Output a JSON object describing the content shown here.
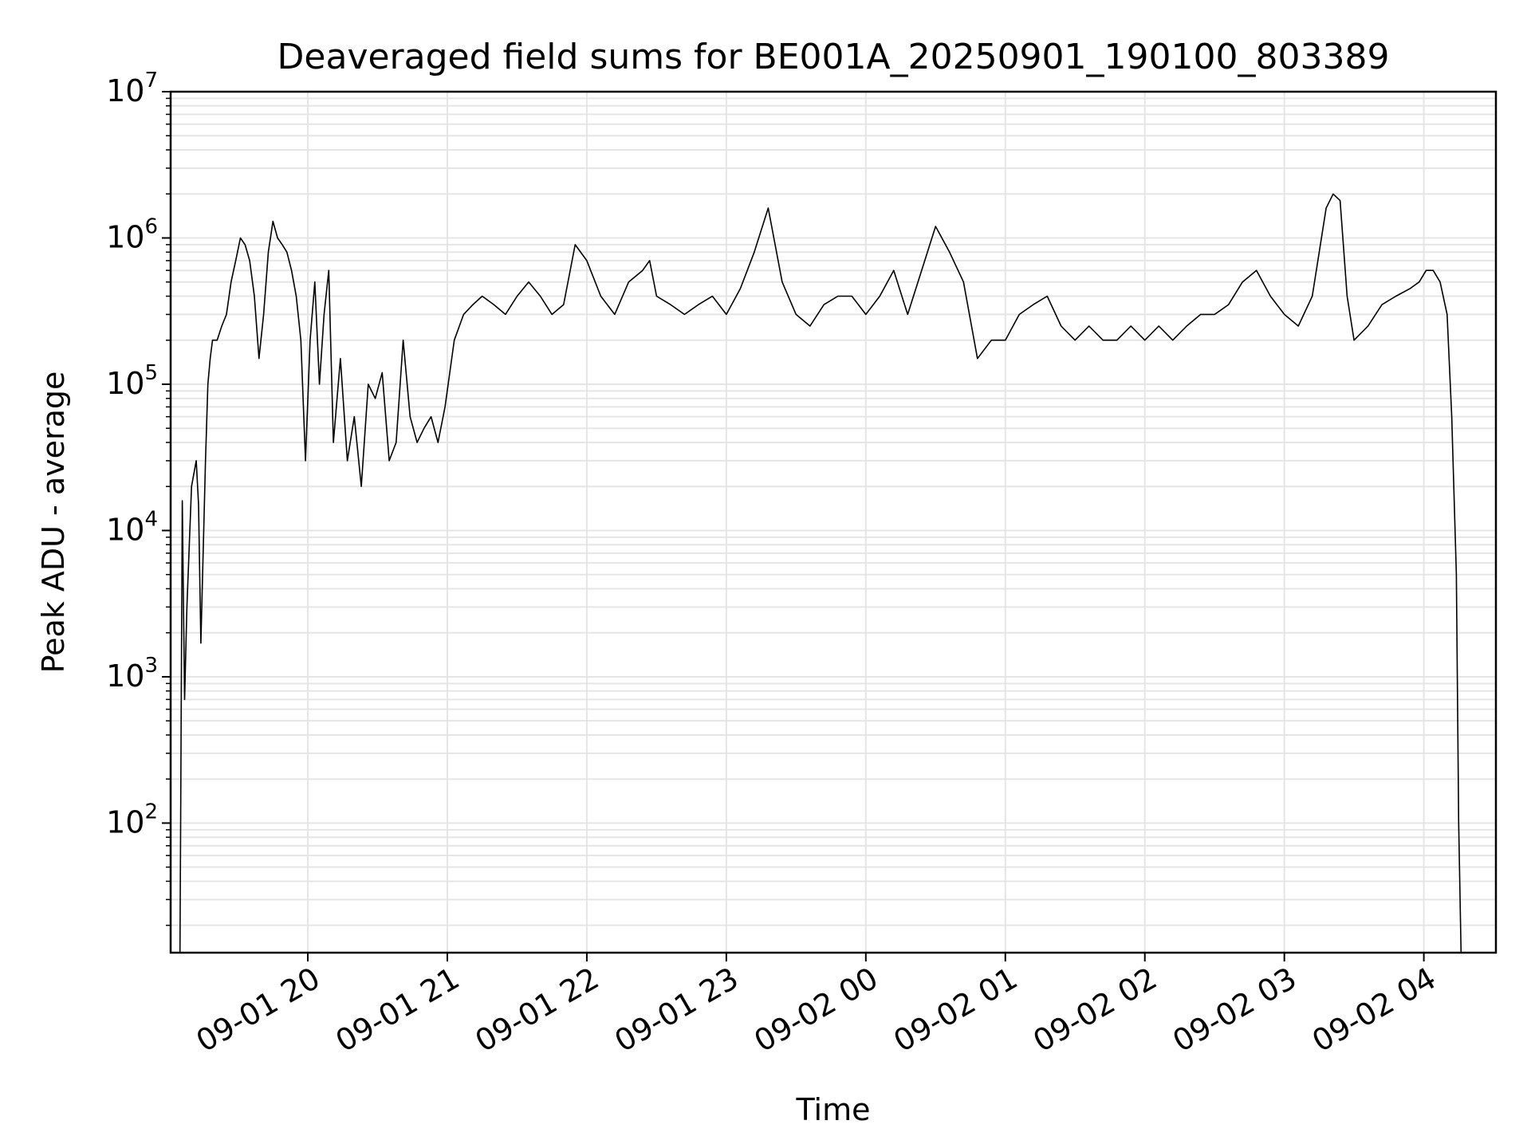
{
  "chart_data": {
    "type": "line",
    "title": "Deaveraged field sums for BE001A_20250901_190100_803389",
    "xlabel": "Time",
    "ylabel": "Peak ADU - average",
    "yscale": "log",
    "grid": true,
    "line_color": "#000000",
    "grid_color": "#e5e5e5",
    "x_range": [
      "09-01 19:01",
      "09-02 04:31"
    ],
    "ylim": [
      13,
      10000000
    ],
    "x_ticks": [
      "09-01 20",
      "09-01 21",
      "09-01 22",
      "09-01 23",
      "09-02 00",
      "09-02 01",
      "09-02 02",
      "09-02 03",
      "09-02 04"
    ],
    "y_ticks": [
      {
        "base": "10",
        "exp": "2",
        "value": 100
      },
      {
        "base": "10",
        "exp": "3",
        "value": 1000
      },
      {
        "base": "10",
        "exp": "4",
        "value": 10000
      },
      {
        "base": "10",
        "exp": "5",
        "value": 100000
      },
      {
        "base": "10",
        "exp": "6",
        "value": 1000000
      },
      {
        "base": "10",
        "exp": "7",
        "value": 10000000
      }
    ],
    "series": [
      {
        "x": [
          "09-01 19:05",
          "09-01 19:06",
          "09-01 19:07",
          "09-01 19:08",
          "09-01 19:10",
          "09-01 19:12",
          "09-01 19:13",
          "09-01 19:14",
          "09-01 19:16",
          "09-01 19:17",
          "09-01 19:18",
          "09-01 19:19",
          "09-01 19:21",
          "09-01 19:23",
          "09-01 19:25",
          "09-01 19:27",
          "09-01 19:29",
          "09-01 19:31",
          "09-01 19:33",
          "09-01 19:35",
          "09-01 19:37",
          "09-01 19:39",
          "09-01 19:41",
          "09-01 19:43",
          "09-01 19:45",
          "09-01 19:47",
          "09-01 19:49",
          "09-01 19:51",
          "09-01 19:53",
          "09-01 19:55",
          "09-01 19:57",
          "09-01 19:59",
          "09-01 20:01",
          "09-01 20:03",
          "09-01 20:05",
          "09-01 20:07",
          "09-01 20:09",
          "09-01 20:11",
          "09-01 20:14",
          "09-01 20:17",
          "09-01 20:20",
          "09-01 20:23",
          "09-01 20:26",
          "09-01 20:29",
          "09-01 20:32",
          "09-01 20:35",
          "09-01 20:38",
          "09-01 20:41",
          "09-01 20:44",
          "09-01 20:47",
          "09-01 20:50",
          "09-01 20:53",
          "09-01 20:56",
          "09-01 20:59",
          "09-01 21:03",
          "09-01 21:07",
          "09-01 21:11",
          "09-01 21:15",
          "09-01 21:20",
          "09-01 21:25",
          "09-01 21:30",
          "09-01 21:35",
          "09-01 21:40",
          "09-01 21:45",
          "09-01 21:50",
          "09-01 21:55",
          "09-01 22:00",
          "09-01 22:06",
          "09-01 22:12",
          "09-01 22:18",
          "09-01 22:24",
          "09-01 22:27",
          "09-01 22:30",
          "09-01 22:36",
          "09-01 22:42",
          "09-01 22:48",
          "09-01 22:54",
          "09-01 23:00",
          "09-01 23:06",
          "09-01 23:12",
          "09-01 23:18",
          "09-01 23:24",
          "09-01 23:30",
          "09-01 23:36",
          "09-01 23:42",
          "09-01 23:48",
          "09-01 23:54",
          "09-02 00:00",
          "09-02 00:06",
          "09-02 00:12",
          "09-02 00:18",
          "09-02 00:24",
          "09-02 00:30",
          "09-02 00:36",
          "09-02 00:42",
          "09-02 00:48",
          "09-02 00:54",
          "09-02 01:00",
          "09-02 01:06",
          "09-02 01:12",
          "09-02 01:18",
          "09-02 01:24",
          "09-02 01:30",
          "09-02 01:36",
          "09-02 01:42",
          "09-02 01:48",
          "09-02 01:54",
          "09-02 02:00",
          "09-02 02:06",
          "09-02 02:12",
          "09-02 02:18",
          "09-02 02:24",
          "09-02 02:30",
          "09-02 02:36",
          "09-02 02:42",
          "09-02 02:48",
          "09-02 02:54",
          "09-02 03:00",
          "09-02 03:06",
          "09-02 03:12",
          "09-02 03:18",
          "09-02 03:21",
          "09-02 03:24",
          "09-02 03:27",
          "09-02 03:30",
          "09-02 03:36",
          "09-02 03:42",
          "09-02 03:48",
          "09-02 03:54",
          "09-02 03:58",
          "09-02 04:01",
          "09-02 04:04",
          "09-02 04:07",
          "09-02 04:10",
          "09-02 04:12",
          "09-02 04:14",
          "09-02 04:15",
          "09-02 04:16"
        ],
        "y": [
          13,
          16000,
          700,
          3000,
          20000,
          30000,
          15000,
          1700,
          30000,
          100000,
          150000,
          200000,
          200000,
          250000,
          300000,
          500000,
          700000,
          1000000,
          900000,
          700000,
          400000,
          150000,
          300000,
          800000,
          1300000,
          1000000,
          900000,
          800000,
          600000,
          400000,
          200000,
          30000,
          200000,
          500000,
          100000,
          300000,
          600000,
          40000,
          150000,
          30000,
          60000,
          20000,
          100000,
          80000,
          120000,
          30000,
          40000,
          200000,
          60000,
          40000,
          50000,
          60000,
          40000,
          70000,
          200000,
          300000,
          350000,
          400000,
          350000,
          300000,
          400000,
          500000,
          400000,
          300000,
          350000,
          900000,
          700000,
          400000,
          300000,
          500000,
          600000,
          700000,
          400000,
          350000,
          300000,
          350000,
          400000,
          300000,
          450000,
          800000,
          1600000,
          500000,
          300000,
          250000,
          350000,
          400000,
          400000,
          300000,
          400000,
          600000,
          300000,
          600000,
          1200000,
          800000,
          500000,
          150000,
          200000,
          200000,
          300000,
          350000,
          400000,
          250000,
          200000,
          250000,
          200000,
          200000,
          250000,
          200000,
          250000,
          200000,
          250000,
          300000,
          300000,
          350000,
          500000,
          600000,
          400000,
          300000,
          250000,
          400000,
          1600000,
          2000000,
          1800000,
          400000,
          200000,
          250000,
          350000,
          400000,
          450000,
          500000,
          600000,
          600000,
          500000,
          300000,
          60000,
          5000,
          100,
          13
        ]
      }
    ]
  }
}
